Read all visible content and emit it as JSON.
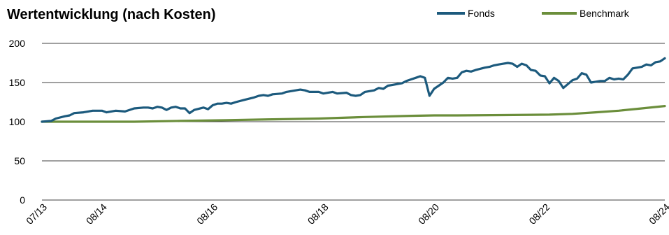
{
  "chart_data": {
    "type": "line",
    "title": "Wertentwicklung (nach Kosten)",
    "xlabel": "",
    "ylabel": "",
    "ylim": [
      0,
      200
    ],
    "yticks": [
      0,
      50,
      100,
      150,
      200
    ],
    "xlim": [
      0,
      133
    ],
    "xticks": [
      {
        "x": 0,
        "label": "07/13"
      },
      {
        "x": 13,
        "label": "08/14"
      },
      {
        "x": 37,
        "label": "08/16"
      },
      {
        "x": 61,
        "label": "08/18"
      },
      {
        "x": 85,
        "label": "08/20"
      },
      {
        "x": 109,
        "label": "08/22"
      },
      {
        "x": 133,
        "label": "08/24"
      }
    ],
    "grid": true,
    "legend": "top-right",
    "series": [
      {
        "name": "Fonds",
        "color": "#1c5a7d",
        "values": [
          [
            0,
            100
          ],
          [
            2,
            101
          ],
          [
            3,
            104
          ],
          [
            5,
            107
          ],
          [
            6,
            108
          ],
          [
            7,
            111
          ],
          [
            9,
            112
          ],
          [
            11,
            114
          ],
          [
            12,
            114
          ],
          [
            13,
            114
          ],
          [
            14,
            112
          ],
          [
            16,
            114
          ],
          [
            18,
            113
          ],
          [
            20,
            117
          ],
          [
            22,
            118
          ],
          [
            23,
            118
          ],
          [
            24,
            117
          ],
          [
            25,
            119
          ],
          [
            26,
            118
          ],
          [
            27,
            115
          ],
          [
            28,
            118
          ],
          [
            29,
            119
          ],
          [
            30,
            117
          ],
          [
            31,
            117
          ],
          [
            32,
            111
          ],
          [
            33,
            115
          ],
          [
            35,
            118
          ],
          [
            36,
            116
          ],
          [
            37,
            121
          ],
          [
            38,
            123
          ],
          [
            39,
            123
          ],
          [
            40,
            124
          ],
          [
            41,
            123
          ],
          [
            42,
            125
          ],
          [
            44,
            128
          ],
          [
            46,
            131
          ],
          [
            47,
            133
          ],
          [
            48,
            134
          ],
          [
            49,
            133
          ],
          [
            50,
            135
          ],
          [
            52,
            136
          ],
          [
            53,
            138
          ],
          [
            55,
            140
          ],
          [
            56,
            141
          ],
          [
            57,
            140
          ],
          [
            58,
            138
          ],
          [
            60,
            138
          ],
          [
            61,
            136
          ],
          [
            62,
            137
          ],
          [
            63,
            138
          ],
          [
            64,
            136
          ],
          [
            66,
            137
          ],
          [
            67,
            134
          ],
          [
            68,
            133
          ],
          [
            69,
            134
          ],
          [
            70,
            138
          ],
          [
            71,
            139
          ],
          [
            72,
            140
          ],
          [
            73,
            143
          ],
          [
            74,
            142
          ],
          [
            75,
            146
          ],
          [
            76,
            147
          ],
          [
            77,
            148
          ],
          [
            78,
            149
          ],
          [
            79,
            152
          ],
          [
            80,
            154
          ],
          [
            81,
            156
          ],
          [
            82,
            158
          ],
          [
            83,
            156
          ],
          [
            84,
            133
          ],
          [
            85,
            142
          ],
          [
            86,
            146
          ],
          [
            87,
            150
          ],
          [
            88,
            156
          ],
          [
            89,
            155
          ],
          [
            90,
            156
          ],
          [
            91,
            163
          ],
          [
            92,
            165
          ],
          [
            93,
            164
          ],
          [
            94,
            166
          ],
          [
            96,
            169
          ],
          [
            97,
            170
          ],
          [
            98,
            172
          ],
          [
            99,
            173
          ],
          [
            100,
            174
          ],
          [
            101,
            175
          ],
          [
            102,
            174
          ],
          [
            103,
            170
          ],
          [
            104,
            174
          ],
          [
            105,
            172
          ],
          [
            106,
            166
          ],
          [
            107,
            165
          ],
          [
            108,
            159
          ],
          [
            109,
            158
          ],
          [
            110,
            149
          ],
          [
            111,
            156
          ],
          [
            112,
            152
          ],
          [
            113,
            143
          ],
          [
            114,
            148
          ],
          [
            115,
            153
          ],
          [
            116,
            155
          ],
          [
            117,
            162
          ],
          [
            118,
            160
          ],
          [
            119,
            150
          ],
          [
            120,
            151
          ],
          [
            121,
            152
          ],
          [
            122,
            152
          ],
          [
            123,
            156
          ],
          [
            124,
            154
          ],
          [
            125,
            155
          ],
          [
            126,
            154
          ],
          [
            127,
            160
          ],
          [
            128,
            168
          ],
          [
            129,
            169
          ],
          [
            130,
            170
          ],
          [
            131,
            173
          ],
          [
            132,
            172
          ],
          [
            133,
            176
          ],
          [
            134,
            177
          ],
          [
            135,
            181
          ]
        ]
      },
      {
        "name": "Benchmark",
        "color": "#6b8e3b",
        "values": [
          [
            0,
            100
          ],
          [
            10,
            100
          ],
          [
            20,
            100
          ],
          [
            30,
            101
          ],
          [
            40,
            102
          ],
          [
            50,
            103
          ],
          [
            60,
            104
          ],
          [
            70,
            106
          ],
          [
            80,
            107.5
          ],
          [
            85,
            108
          ],
          [
            90,
            108
          ],
          [
            100,
            108.5
          ],
          [
            110,
            109
          ],
          [
            115,
            110
          ],
          [
            120,
            112
          ],
          [
            125,
            114
          ],
          [
            130,
            117
          ],
          [
            135,
            120
          ]
        ]
      }
    ]
  }
}
